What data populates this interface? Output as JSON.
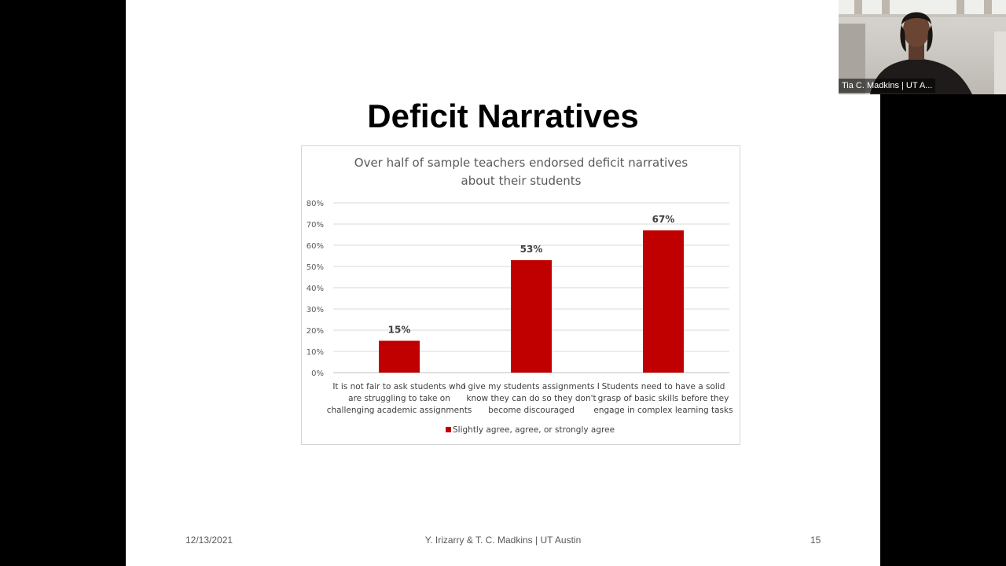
{
  "slide": {
    "title": "Deficit Narratives",
    "footer": {
      "date": "12/13/2021",
      "authors": "Y. Irizarry & T. C. Madkins | UT Austin",
      "page": "15"
    }
  },
  "video": {
    "participant_name": "Tia C. Madkins | UT A..."
  },
  "chart_data": {
    "type": "bar",
    "title_lines": [
      "Over half of sample teachers endorsed deficit narratives",
      "about their students"
    ],
    "categories": [
      [
        "It is not fair to ask students who",
        "are struggling to take on",
        "challenging academic assignments"
      ],
      [
        "I give my students assignments I",
        "know they can do so they don't",
        "become discouraged"
      ],
      [
        "Students need to have a solid",
        "grasp of basic skills before they",
        "engage in complex learning tasks"
      ]
    ],
    "series": [
      {
        "name": "Slightly agree, agree, or strongly agree",
        "values": [
          15,
          53,
          67
        ],
        "value_labels": [
          "15%",
          "53%",
          "67%"
        ],
        "color": "#c00000"
      }
    ],
    "ylim": [
      0,
      80
    ],
    "yticks": [
      "0%",
      "10%",
      "20%",
      "30%",
      "40%",
      "50%",
      "60%",
      "70%",
      "80%"
    ],
    "grid": true,
    "legend_position": "bottom"
  }
}
